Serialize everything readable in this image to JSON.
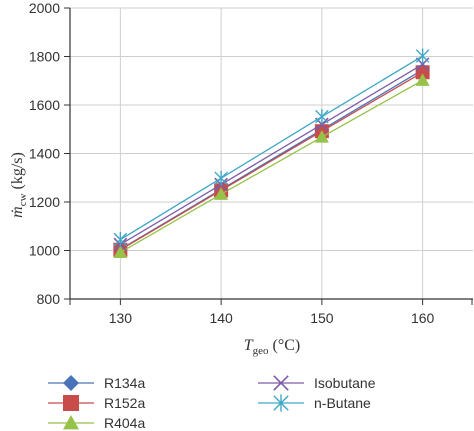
{
  "chart_data": {
    "type": "line",
    "x": [
      130,
      140,
      150,
      160
    ],
    "xlim": [
      125,
      165
    ],
    "ylim": [
      800,
      2000
    ],
    "x_ticks": [
      "130",
      "140",
      "150",
      "160"
    ],
    "y_ticks": [
      "800",
      "1000",
      "1200",
      "1400",
      "1600",
      "1800",
      "2000"
    ],
    "grid": true,
    "xlabel": {
      "main": "T",
      "sub": "geo",
      "unit": " (°C)"
    },
    "ylabel": {
      "main": "ṁ",
      "sub": "cw",
      "unit": " (kg/s)"
    },
    "legend_position": "bottom",
    "series": [
      {
        "name": "R134a",
        "values": [
          1005,
          1252,
          1498,
          1745
        ],
        "color": "#4a74b8",
        "marker": "diamond"
      },
      {
        "name": "R152a",
        "values": [
          1003,
          1248,
          1492,
          1735
        ],
        "color": "#c84c4a",
        "marker": "square"
      },
      {
        "name": "R404a",
        "values": [
          992,
          1232,
          1468,
          1702
        ],
        "color": "#97c24a",
        "marker": "triangle"
      },
      {
        "name": "Isobutane",
        "values": [
          1025,
          1272,
          1520,
          1768
        ],
        "color": "#7d5ca6",
        "marker": "x"
      },
      {
        "name": "n-Butane",
        "values": [
          1045,
          1298,
          1552,
          1802
        ],
        "color": "#3fa7c6",
        "marker": "star"
      }
    ]
  }
}
